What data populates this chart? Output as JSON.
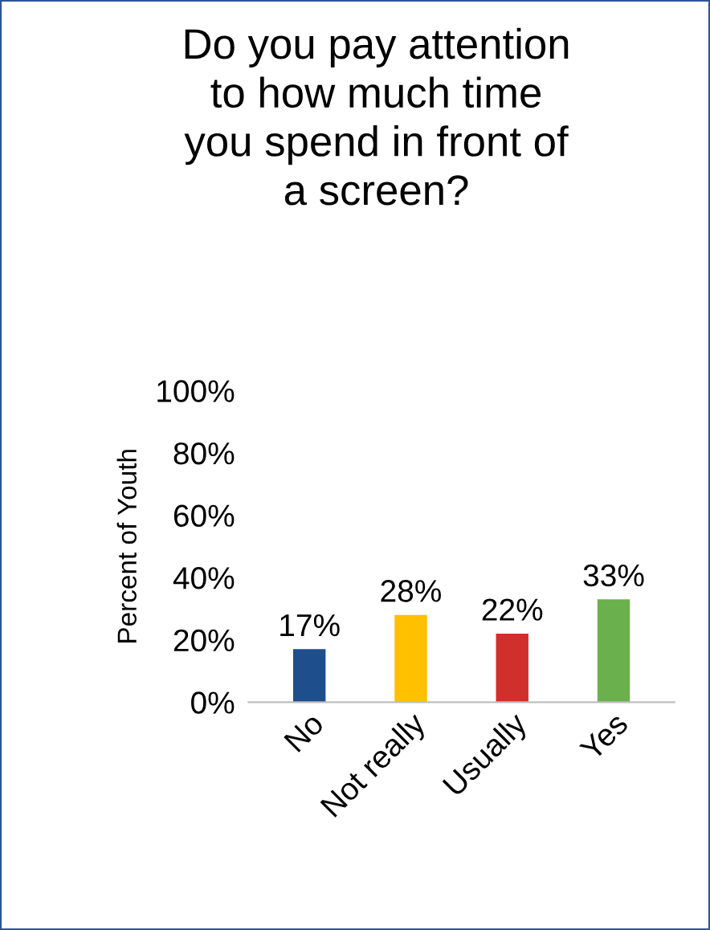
{
  "chart_data": {
    "type": "bar",
    "title": "Do you pay attention\nto how much time\nyou spend in front of\na screen?",
    "ylabel": "Percent of Youth",
    "categories": [
      "No",
      "Not really",
      "Usually",
      "Yes"
    ],
    "values": [
      17,
      28,
      22,
      33
    ],
    "value_labels": [
      "17%",
      "28%",
      "22%",
      "33%"
    ],
    "colors": [
      "#1f4e8c",
      "#ffc000",
      "#d0302b",
      "#6ab04c"
    ],
    "ylim": [
      0,
      100
    ],
    "yticks": [
      {
        "value": 0,
        "label": "0%"
      },
      {
        "value": 20,
        "label": "20%"
      },
      {
        "value": 40,
        "label": "40%"
      },
      {
        "value": 60,
        "label": "60%"
      },
      {
        "value": 80,
        "label": "80%"
      },
      {
        "value": 100,
        "label": "100%"
      }
    ],
    "grid": false,
    "legend": false
  }
}
